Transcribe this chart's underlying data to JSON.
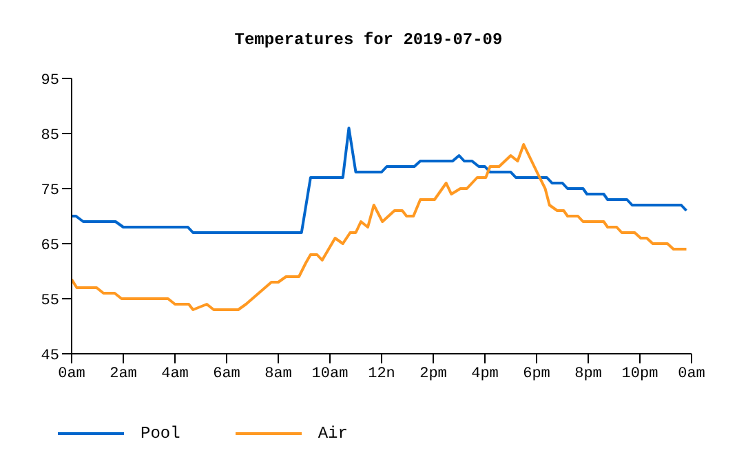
{
  "chart_data": {
    "type": "line",
    "title": "Temperatures for 2019-07-09",
    "xlim": [
      "2019-07-09T00:00",
      "2019-07-10T00:00"
    ],
    "xticks": [
      {
        "value": "2019-07-09T00:00",
        "label": "0am"
      },
      {
        "value": "2019-07-09T02:00",
        "label": "2am"
      },
      {
        "value": "2019-07-09T04:00",
        "label": "4am"
      },
      {
        "value": "2019-07-09T06:00",
        "label": "6am"
      },
      {
        "value": "2019-07-09T08:00",
        "label": "8am"
      },
      {
        "value": "2019-07-09T10:00",
        "label": "10am"
      },
      {
        "value": "2019-07-09T12:00",
        "label": "12n"
      },
      {
        "value": "2019-07-09T14:00",
        "label": "2pm"
      },
      {
        "value": "2019-07-09T16:00",
        "label": "4pm"
      },
      {
        "value": "2019-07-09T18:00",
        "label": "6pm"
      },
      {
        "value": "2019-07-09T20:00",
        "label": "8pm"
      },
      {
        "value": "2019-07-09T22:00",
        "label": "10pm"
      },
      {
        "value": "2019-07-10T00:00",
        "label": "0am"
      }
    ],
    "ylim": [
      45,
      95
    ],
    "yticks": [
      45,
      55,
      65,
      75,
      85,
      95
    ],
    "legend": "bottom left",
    "series": [
      {
        "name": "Pool",
        "color": "#0066cc",
        "x": [
          "2019-07-09T00:00",
          "2019-07-09T00:10",
          "2019-07-09T00:27",
          "2019-07-09T01:42",
          "2019-07-09T02:00",
          "2019-07-09T04:30",
          "2019-07-09T04:42",
          "2019-07-09T08:54",
          "2019-07-09T09:15",
          "2019-07-09T10:30",
          "2019-07-09T10:44",
          "2019-07-09T11:00",
          "2019-07-09T12:00",
          "2019-07-09T12:12",
          "2019-07-09T13:16",
          "2019-07-09T13:30",
          "2019-07-09T14:45",
          "2019-07-09T15:00",
          "2019-07-09T15:12",
          "2019-07-09T15:30",
          "2019-07-09T15:46",
          "2019-07-09T16:00",
          "2019-07-09T16:12",
          "2019-07-09T17:00",
          "2019-07-09T17:12",
          "2019-07-09T18:24",
          "2019-07-09T18:36",
          "2019-07-09T19:00",
          "2019-07-09T19:12",
          "2019-07-09T19:48",
          "2019-07-09T19:57",
          "2019-07-09T20:36",
          "2019-07-09T20:45",
          "2019-07-09T21:30",
          "2019-07-09T21:42",
          "2019-07-09T23:36",
          "2019-07-09T23:48"
        ],
        "values": [
          70,
          70,
          69,
          69,
          68,
          68,
          67,
          67,
          77,
          77,
          86,
          78,
          78,
          79,
          79,
          80,
          80,
          81,
          80,
          80,
          79,
          79,
          78,
          78,
          77,
          77,
          76,
          76,
          75,
          75,
          74,
          74,
          73,
          73,
          72,
          72,
          71
        ]
      },
      {
        "name": "Air",
        "color": "#ff9922",
        "x": [
          "2019-07-09T00:00",
          "2019-07-09T00:12",
          "2019-07-09T00:58",
          "2019-07-09T01:14",
          "2019-07-09T01:40",
          "2019-07-09T01:56",
          "2019-07-09T03:44",
          "2019-07-09T04:00",
          "2019-07-09T04:32",
          "2019-07-09T04:42",
          "2019-07-09T05:14",
          "2019-07-09T05:30",
          "2019-07-09T06:27",
          "2019-07-09T06:45",
          "2019-07-09T07:44",
          "2019-07-09T08:00",
          "2019-07-09T08:18",
          "2019-07-09T08:48",
          "2019-07-09T09:04",
          "2019-07-09T09:15",
          "2019-07-09T09:30",
          "2019-07-09T09:42",
          "2019-07-09T10:12",
          "2019-07-09T10:30",
          "2019-07-09T10:47",
          "2019-07-09T11:00",
          "2019-07-09T11:12",
          "2019-07-09T11:28",
          "2019-07-09T11:42",
          "2019-07-09T12:02",
          "2019-07-09T12:30",
          "2019-07-09T12:48",
          "2019-07-09T12:58",
          "2019-07-09T13:14",
          "2019-07-09T13:30",
          "2019-07-09T14:03",
          "2019-07-09T14:30",
          "2019-07-09T14:42",
          "2019-07-09T15:03",
          "2019-07-09T15:18",
          "2019-07-09T15:42",
          "2019-07-09T16:02",
          "2019-07-09T16:12",
          "2019-07-09T16:33",
          "2019-07-09T17:00",
          "2019-07-09T17:16",
          "2019-07-09T17:30",
          "2019-07-09T18:04",
          "2019-07-09T18:20",
          "2019-07-09T18:30",
          "2019-07-09T18:48",
          "2019-07-09T19:03",
          "2019-07-09T19:12",
          "2019-07-09T19:36",
          "2019-07-09T19:48",
          "2019-07-09T20:36",
          "2019-07-09T20:45",
          "2019-07-09T21:06",
          "2019-07-09T21:18",
          "2019-07-09T21:48",
          "2019-07-09T22:02",
          "2019-07-09T22:16",
          "2019-07-09T22:30",
          "2019-07-09T23:04",
          "2019-07-09T23:18",
          "2019-07-09T23:48"
        ],
        "values": [
          58.5,
          57,
          57,
          56,
          56,
          55,
          55,
          54,
          54,
          53,
          54,
          53,
          53,
          54,
          58,
          58,
          59,
          59,
          61.5,
          63,
          63,
          62,
          66,
          65,
          67,
          67,
          69,
          68,
          72,
          69,
          71,
          71,
          70,
          70,
          73,
          73,
          76,
          74,
          75,
          75,
          77,
          77,
          79,
          79,
          81,
          80,
          83,
          77.5,
          75,
          72,
          71,
          71,
          70,
          70,
          69,
          69,
          68,
          68,
          67,
          67,
          66,
          66,
          65,
          65,
          64,
          64
        ]
      }
    ]
  }
}
